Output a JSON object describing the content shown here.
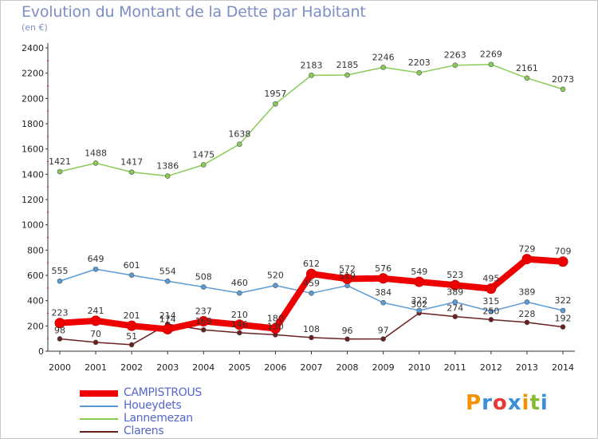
{
  "chart_data": {
    "type": "line",
    "title": "Evolution du Montant de la Dette par Habitant",
    "unit": "(en €)",
    "x": [
      "2000",
      "2001",
      "2002",
      "2003",
      "2004",
      "2005",
      "2006",
      "2007",
      "2008",
      "2009",
      "2010",
      "2011",
      "2012",
      "2013",
      "2014"
    ],
    "ylim": [
      0,
      2400
    ],
    "yticks": [
      0,
      200,
      400,
      600,
      800,
      1000,
      1200,
      1400,
      1600,
      1800,
      2000,
      2200,
      2400
    ],
    "grid": false,
    "legend_position": "bottom-left",
    "series": [
      {
        "name": "CAMPISTROUS",
        "color": "#ee0000",
        "values": [
          223,
          241,
          201,
          174,
          237,
          210,
          180,
          612,
          572,
          576,
          549,
          523,
          495,
          729,
          709
        ]
      },
      {
        "name": "Houeydets",
        "color": "#5b9bd5",
        "values": [
          555,
          649,
          601,
          554,
          508,
          460,
          520,
          459,
          519,
          384,
          322,
          389,
          315,
          389,
          322
        ]
      },
      {
        "name": "Lannemezan",
        "color": "#88cc55",
        "values": [
          1421,
          1488,
          1417,
          1386,
          1475,
          1638,
          1957,
          2183,
          2185,
          2246,
          2203,
          2263,
          2269,
          2161,
          2073
        ]
      },
      {
        "name": "Clarens",
        "color": "#6b2020",
        "values": [
          98,
          70,
          51,
          214,
          169,
          146,
          130,
          108,
          96,
          97,
          302,
          274,
          250,
          228,
          192
        ]
      }
    ]
  },
  "logo": {
    "text": "Proxiti"
  }
}
